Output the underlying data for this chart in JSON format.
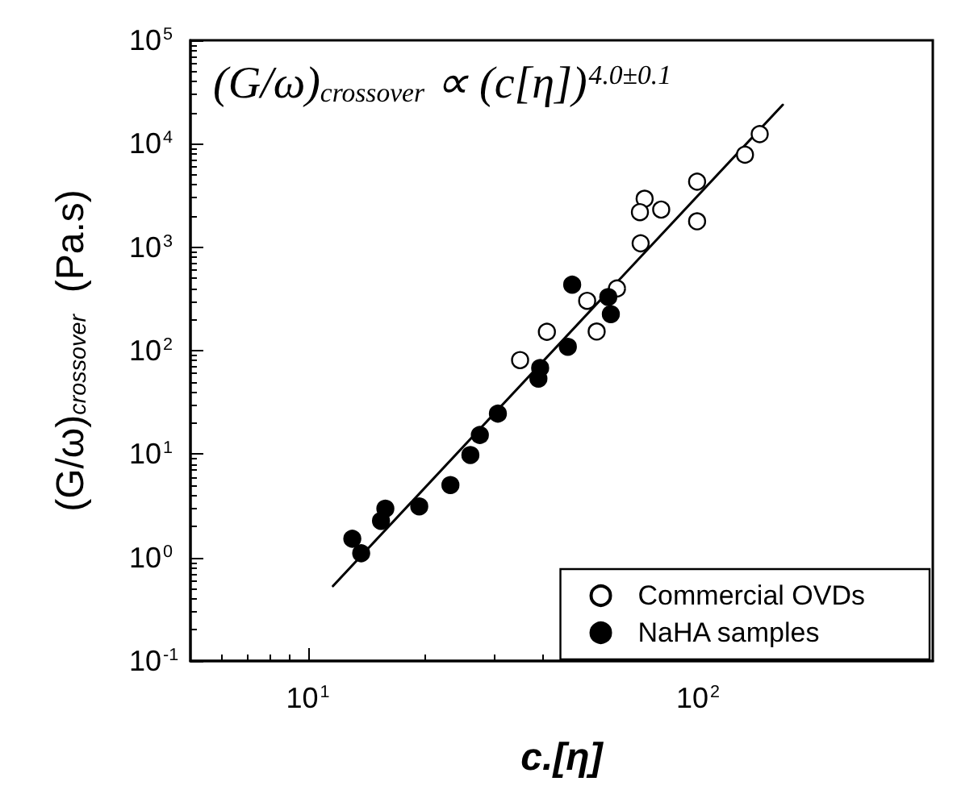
{
  "chart_data": {
    "type": "scatter",
    "xlabel": "c.[η]",
    "ylabel": "(G/ω)$_{crossover}$  (Pa.s)",
    "annotations": [
      "(G/ω)$_{crossover}$ ∝ (c[η])$^{4.0±0.1}$"
    ],
    "log": "xy",
    "xlim": [
      5,
      400
    ],
    "xticks": [
      {
        "value": 10,
        "label": "10$^{1}$"
      },
      {
        "value": 100,
        "label": "10$^{2}$"
      }
    ],
    "ylim": [
      0.1,
      100000
    ],
    "yticks": [
      {
        "value": 0.1,
        "label": "10$^{-1}$"
      },
      {
        "value": 1,
        "label": "10$^{0}$"
      },
      {
        "value": 10,
        "label": "10$^{1}$"
      },
      {
        "value": 100,
        "label": "10$^{2}$"
      },
      {
        "value": 1000,
        "label": "10$^{3}$"
      },
      {
        "value": 10000,
        "label": "10$^{4}$"
      },
      {
        "value": 100000,
        "label": "10$^{5}$"
      }
    ],
    "grid": false,
    "legend": "bottom right",
    "marker": "circle",
    "series": [
      {
        "name": "Commercial OVDs",
        "color": "#ffffff",
        "x": [
          144,
          132,
          99.5,
          99.5,
          73,
          71,
          80.5,
          71.3,
          62,
          52,
          55,
          41,
          35
        ],
        "values": [
          12400,
          7840,
          4300,
          1780,
          2940,
          2180,
          2310,
          1090,
          399,
          303,
          153,
          152,
          81
        ]
      },
      {
        "name": "NaHA samples",
        "color": "#000000",
        "x": [
          13.0,
          13.7,
          15.4,
          15.8,
          19.3,
          23.2,
          26.1,
          27.6,
          30.7,
          39,
          39.4,
          46.4,
          47.6,
          58.9,
          59.8
        ],
        "values": [
          1.52,
          1.1,
          2.26,
          2.97,
          3.12,
          5.02,
          9.8,
          15.3,
          24.6,
          53.6,
          68,
          109,
          434,
          330,
          225
        ]
      },
      {
        "type": "line",
        "color": "#000000",
        "marker": "none",
        "line_style": "solid",
        "x": [
          11.6,
          165
        ],
        "values": [
          0.53,
          23800
        ]
      }
    ]
  }
}
